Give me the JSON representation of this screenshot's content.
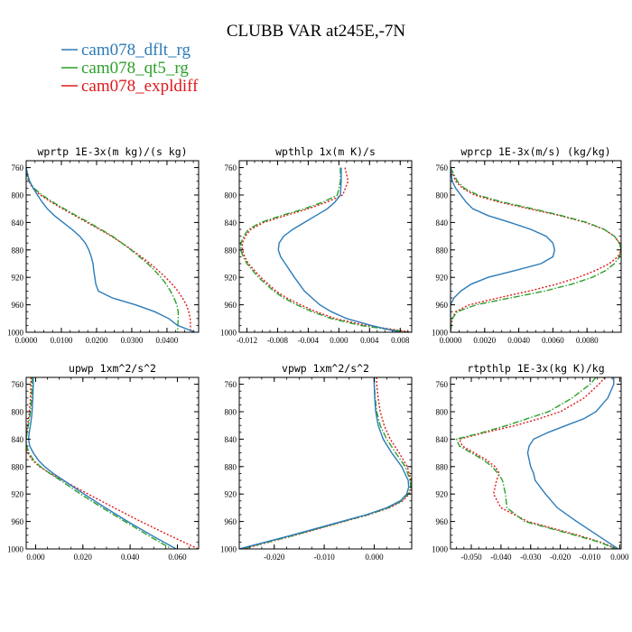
{
  "figure": {
    "title": "CLUBB VAR at245E,-7N",
    "legend": [
      {
        "label": "cam078_dflt_rg",
        "color": "#2b7bb9",
        "dash": "solid"
      },
      {
        "label": "cam078_qt5_rg",
        "color": "#2ca02c",
        "dash": "dashdot"
      },
      {
        "label": "cam078_expldiff",
        "color": "#e0181c",
        "dash": "dotted"
      }
    ]
  },
  "chart_data": [
    {
      "type": "line",
      "title": "wprtp  1E-3x(m kg)/(s kg)",
      "xlim": [
        0.0,
        0.049
      ],
      "ylim": [
        1000,
        750
      ],
      "xticks": [
        0.0,
        0.01,
        0.02,
        0.03,
        0.04
      ],
      "xtick_labels": [
        "0.0000",
        "0.0100",
        "0.0200",
        "0.0300",
        "0.0400"
      ],
      "yticks": [
        760,
        800,
        840,
        880,
        920,
        960,
        1000
      ],
      "ytick_labels": [
        "760",
        "800",
        "840",
        "880",
        "920",
        "960",
        "1000"
      ],
      "y": [
        760,
        770,
        780,
        790,
        800,
        810,
        820,
        830,
        840,
        850,
        860,
        870,
        880,
        890,
        900,
        910,
        920,
        930,
        940,
        950,
        960,
        970,
        980,
        990,
        1000
      ],
      "series": [
        {
          "values": [
            0.0,
            0.0004,
            0.001,
            0.002,
            0.0032,
            0.0045,
            0.006,
            0.008,
            0.0105,
            0.013,
            0.0152,
            0.0168,
            0.0178,
            0.0185,
            0.019,
            0.0192,
            0.0195,
            0.0198,
            0.0205,
            0.0245,
            0.031,
            0.0365,
            0.0405,
            0.043,
            0.048
          ]
        },
        {
          "values": [
            0.0,
            0.0002,
            0.0008,
            0.0022,
            0.0045,
            0.0075,
            0.0108,
            0.0142,
            0.0178,
            0.0212,
            0.0245,
            0.0272,
            0.0298,
            0.0322,
            0.0345,
            0.0365,
            0.0383,
            0.0398,
            0.041,
            0.042,
            0.0428,
            0.0432,
            0.0432,
            0.0431,
            0.043
          ]
        },
        {
          "values": [
            0.0,
            0.0002,
            0.0007,
            0.0019,
            0.004,
            0.007,
            0.0103,
            0.0138,
            0.0173,
            0.0208,
            0.0242,
            0.0272,
            0.03,
            0.0327,
            0.0352,
            0.0375,
            0.0396,
            0.0415,
            0.0431,
            0.0444,
            0.0455,
            0.0462,
            0.0466,
            0.0467,
            0.0467
          ]
        }
      ]
    },
    {
      "type": "line",
      "title": "wpthlp  1x(m K)/s",
      "xlim": [
        -0.013,
        0.0095
      ],
      "ylim": [
        1000,
        750
      ],
      "xticks": [
        -0.012,
        -0.008,
        -0.004,
        0.0,
        0.004,
        0.008
      ],
      "xtick_labels": [
        "-0.012",
        "-0.008",
        "-0.004",
        "0.000",
        "0.004",
        "0.008"
      ],
      "yticks": [
        760,
        800,
        840,
        880,
        920,
        960,
        1000
      ],
      "ytick_labels": [
        "760",
        "800",
        "840",
        "880",
        "920",
        "960",
        "1000"
      ],
      "y": [
        760,
        780,
        800,
        810,
        820,
        830,
        840,
        850,
        860,
        870,
        880,
        890,
        900,
        920,
        940,
        950,
        960,
        970,
        980,
        990,
        1000
      ],
      "series": [
        {
          "values": [
            0.0003,
            0.0003,
            0.0002,
            -0.0005,
            -0.0015,
            -0.003,
            -0.0045,
            -0.006,
            -0.0072,
            -0.0078,
            -0.0079,
            -0.0076,
            -0.007,
            -0.0058,
            -0.0045,
            -0.0035,
            -0.0025,
            -0.001,
            0.001,
            0.0042,
            0.008
          ]
        },
        {
          "values": [
            0.0002,
            0.0002,
            -0.0002,
            -0.002,
            -0.0045,
            -0.0075,
            -0.0102,
            -0.0118,
            -0.0124,
            -0.0128,
            -0.0128,
            -0.0125,
            -0.012,
            -0.0105,
            -0.0085,
            -0.0072,
            -0.0055,
            -0.0035,
            -0.001,
            0.0028,
            0.009
          ]
        },
        {
          "values": [
            0.0008,
            0.0012,
            0.0005,
            -0.0015,
            -0.004,
            -0.007,
            -0.0098,
            -0.0115,
            -0.0122,
            -0.0126,
            -0.0126,
            -0.0123,
            -0.0118,
            -0.0102,
            -0.0082,
            -0.0068,
            -0.005,
            -0.003,
            -0.0005,
            0.0035,
            0.0095
          ]
        }
      ]
    },
    {
      "type": "line",
      "title": "wprcp  1E-3x(m/s) (kg/kg)",
      "xlim": [
        0.0,
        0.01
      ],
      "ylim": [
        1000,
        750
      ],
      "xticks": [
        0.0,
        0.002,
        0.004,
        0.006,
        0.008
      ],
      "xtick_labels": [
        "0.0000",
        "0.0020",
        "0.0040",
        "0.0060",
        "0.0080"
      ],
      "yticks": [
        760,
        800,
        840,
        880,
        920,
        960,
        1000
      ],
      "ytick_labels": [
        "760",
        "800",
        "840",
        "880",
        "920",
        "960",
        "1000"
      ],
      "y": [
        760,
        780,
        790,
        800,
        810,
        820,
        830,
        840,
        850,
        860,
        870,
        880,
        890,
        900,
        910,
        920,
        930,
        940,
        950,
        960,
        970,
        980,
        1000
      ],
      "series": [
        {
          "values": [
            0.0,
            0.0001,
            0.0003,
            0.0006,
            0.0009,
            0.0013,
            0.0022,
            0.0035,
            0.0047,
            0.0056,
            0.006,
            0.0061,
            0.006,
            0.0053,
            0.0038,
            0.0022,
            0.0012,
            0.0006,
            0.0002,
            0.0,
            0.0,
            0.0,
            0.0
          ]
        },
        {
          "values": [
            0.0,
            0.0004,
            0.0008,
            0.0016,
            0.003,
            0.0048,
            0.0065,
            0.008,
            0.009,
            0.0096,
            0.0099,
            0.01,
            0.0099,
            0.0096,
            0.0091,
            0.0083,
            0.0071,
            0.0055,
            0.0035,
            0.0015,
            0.0004,
            0.0001,
            0.0
          ]
        },
        {
          "values": [
            0.0,
            0.0003,
            0.0007,
            0.0014,
            0.0028,
            0.0046,
            0.0064,
            0.0079,
            0.009,
            0.0096,
            0.0099,
            0.01,
            0.0098,
            0.0093,
            0.0085,
            0.0075,
            0.0062,
            0.0046,
            0.0028,
            0.0011,
            0.0003,
            0.0001,
            0.0
          ]
        }
      ]
    },
    {
      "type": "line",
      "title": "upwp  1xm^2/s^2",
      "xlim": [
        -0.004,
        0.069
      ],
      "ylim": [
        1000,
        750
      ],
      "xticks": [
        0.0,
        0.02,
        0.04,
        0.06
      ],
      "xtick_labels": [
        "0.000",
        "0.020",
        "0.040",
        "0.060"
      ],
      "yticks": [
        760,
        800,
        840,
        880,
        920,
        960,
        1000
      ],
      "ytick_labels": [
        "760",
        "800",
        "840",
        "880",
        "920",
        "960",
        "1000"
      ],
      "y": [
        750,
        760,
        780,
        800,
        810,
        820,
        830,
        840,
        850,
        860,
        870,
        880,
        890,
        900,
        920,
        940,
        960,
        980,
        1000
      ],
      "series": [
        {
          "values": [
            -0.001,
            -0.001,
            -0.0012,
            -0.0015,
            -0.0018,
            -0.0022,
            -0.0027,
            -0.003,
            -0.0025,
            -0.001,
            0.001,
            0.0038,
            0.0075,
            0.0118,
            0.0205,
            0.0295,
            0.039,
            0.049,
            0.0595
          ]
        },
        {
          "values": [
            -0.0015,
            -0.0015,
            -0.0017,
            -0.0022,
            -0.0026,
            -0.0031,
            -0.0036,
            -0.004,
            -0.0038,
            -0.0028,
            -0.001,
            0.002,
            0.006,
            0.0105,
            0.019,
            0.0282,
            0.0378,
            0.0475,
            0.0575
          ]
        },
        {
          "values": [
            -0.002,
            -0.002,
            -0.0022,
            -0.0026,
            -0.003,
            -0.0034,
            -0.0038,
            -0.0041,
            -0.004,
            -0.0033,
            -0.0015,
            0.0016,
            0.0062,
            0.0115,
            0.0222,
            0.0332,
            0.0445,
            0.0565,
            0.0688
          ]
        }
      ]
    },
    {
      "type": "line",
      "title": "vpwp  1xm^2/s^2",
      "xlim": [
        -0.027,
        0.0075
      ],
      "ylim": [
        1000,
        750
      ],
      "xticks": [
        -0.02,
        -0.01,
        0.0
      ],
      "xtick_labels": [
        "-0.020",
        "-0.010",
        "0.000"
      ],
      "yticks": [
        760,
        800,
        840,
        880,
        920,
        960,
        1000
      ],
      "ytick_labels": [
        "760",
        "800",
        "840",
        "880",
        "920",
        "960",
        "1000"
      ],
      "y": [
        750,
        760,
        780,
        800,
        820,
        840,
        860,
        880,
        900,
        910,
        920,
        930,
        940,
        950,
        960,
        980,
        1000
      ],
      "series": [
        {
          "values": [
            0.0,
            0.0,
            0.0001,
            0.0003,
            0.0008,
            0.0018,
            0.0035,
            0.0055,
            0.0068,
            0.0069,
            0.0065,
            0.0052,
            0.0025,
            -0.0015,
            -0.0065,
            -0.0165,
            -0.027
          ]
        },
        {
          "values": [
            0.0,
            0.0,
            0.0002,
            0.0005,
            0.0012,
            0.0025,
            0.0043,
            0.0062,
            0.0072,
            0.0073,
            0.0068,
            0.0055,
            0.0028,
            -0.0012,
            -0.0062,
            -0.016,
            -0.0265
          ]
        },
        {
          "values": [
            0.0005,
            0.0005,
            0.0008,
            0.0012,
            0.002,
            0.0032,
            0.005,
            0.0066,
            0.0074,
            0.0075,
            0.007,
            0.0057,
            0.003,
            -0.001,
            -0.006,
            -0.0158,
            -0.0262
          ]
        }
      ]
    },
    {
      "type": "line",
      "title": "rtpthlp  1E-3x(kg K)/kg",
      "xlim": [
        -0.057,
        0.0005
      ],
      "ylim": [
        1000,
        750
      ],
      "xticks": [
        -0.05,
        -0.04,
        -0.03,
        -0.02,
        -0.01,
        0.0
      ],
      "xtick_labels": [
        "-0.050",
        "-0.040",
        "-0.030",
        "-0.020",
        "-0.010",
        "0.000"
      ],
      "yticks": [
        760,
        800,
        840,
        880,
        920,
        960,
        1000
      ],
      "ytick_labels": [
        "760",
        "800",
        "840",
        "880",
        "920",
        "960",
        "1000"
      ],
      "y": [
        750,
        760,
        780,
        800,
        810,
        820,
        830,
        840,
        850,
        860,
        870,
        880,
        890,
        900,
        920,
        940,
        960,
        980,
        990,
        1000
      ],
      "series": [
        {
          "values": [
            -0.002,
            -0.002,
            -0.004,
            -0.008,
            -0.012,
            -0.018,
            -0.024,
            -0.029,
            -0.0305,
            -0.031,
            -0.0305,
            -0.03,
            -0.029,
            -0.0285,
            -0.025,
            -0.021,
            -0.0145,
            -0.0075,
            -0.004,
            -0.0005
          ]
        },
        {
          "values": [
            -0.008,
            -0.01,
            -0.016,
            -0.024,
            -0.031,
            -0.038,
            -0.046,
            -0.055,
            -0.054,
            -0.05,
            -0.046,
            -0.043,
            -0.041,
            -0.0395,
            -0.0385,
            -0.038,
            -0.032,
            -0.015,
            -0.007,
            -0.001
          ]
        },
        {
          "values": [
            -0.005,
            -0.007,
            -0.012,
            -0.02,
            -0.027,
            -0.035,
            -0.045,
            -0.054,
            -0.053,
            -0.049,
            -0.045,
            -0.042,
            -0.0405,
            -0.0415,
            -0.0425,
            -0.04,
            -0.031,
            -0.014,
            -0.0065,
            -0.0008
          ]
        }
      ]
    }
  ]
}
